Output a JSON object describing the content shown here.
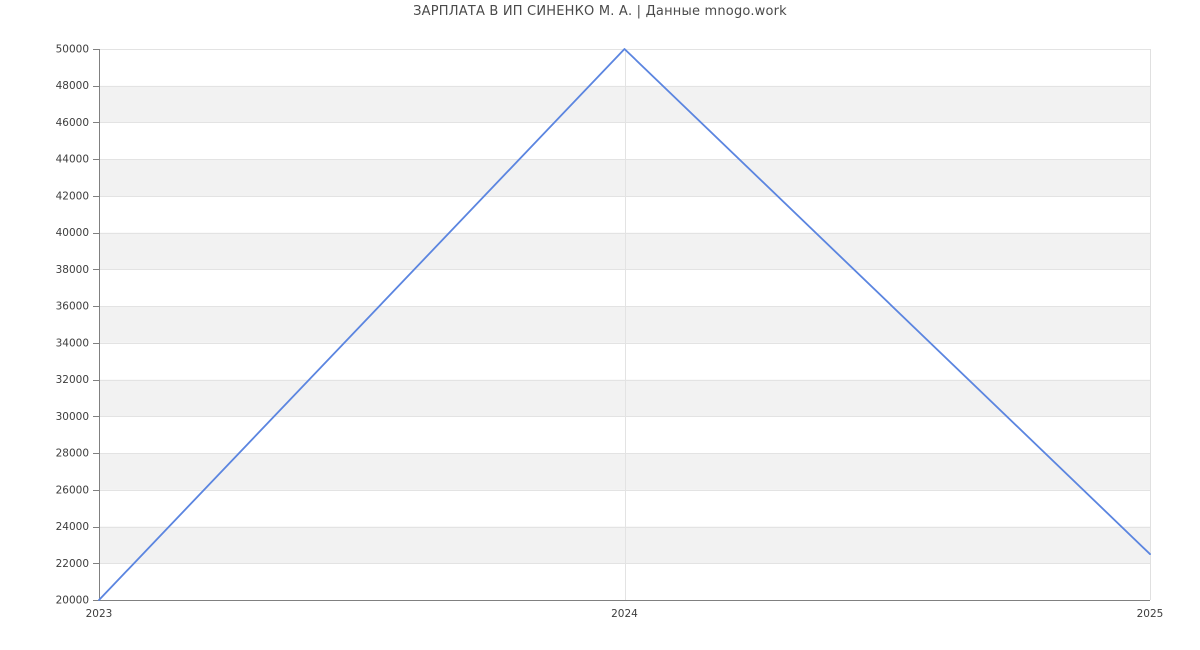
{
  "title": "ЗАРПЛАТА В ИП СИНЕНКО М. А. | Данные mnogo.work",
  "chart_data": {
    "type": "line",
    "title": "ЗАРПЛАТА В ИП СИНЕНКО М. А. | Данные mnogo.work",
    "x": [
      2023,
      2024,
      2025
    ],
    "x_tick_labels": [
      "2023",
      "2024",
      "2025"
    ],
    "series": [
      {
        "name": "salary",
        "values": [
          20000,
          50000,
          22500
        ]
      }
    ],
    "xlabel": "",
    "ylabel": "",
    "ylim": [
      20000,
      50000
    ],
    "ytick_step": 2000,
    "y_tick_labels": [
      "20000",
      "22000",
      "24000",
      "26000",
      "28000",
      "30000",
      "32000",
      "34000",
      "36000",
      "38000",
      "40000",
      "42000",
      "44000",
      "46000",
      "48000",
      "50000"
    ],
    "grid": true,
    "legend_position": "none",
    "band_fill_alternating": true,
    "colors": {
      "line": "#5b85e0",
      "band": "#f2f2f2",
      "gridline": "#e3e3e3",
      "right_border": "#e0e0e0",
      "axis": "#808080",
      "tick_label": "#3d3d3d",
      "title": "#4a4a4a",
      "background": "#ffffff"
    }
  }
}
